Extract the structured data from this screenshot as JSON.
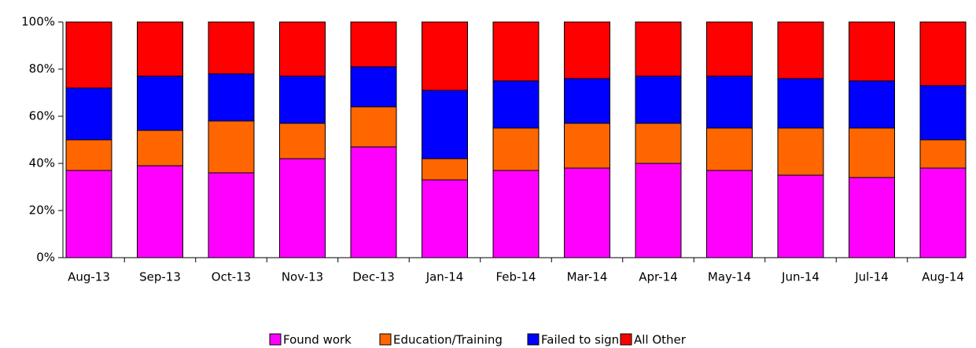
{
  "chart_data": {
    "type": "stacked_bar",
    "categories": [
      "Aug-13",
      "Sep-13",
      "Oct-13",
      "Nov-13",
      "Dec-13",
      "Jan-14",
      "Feb-14",
      "Mar-14",
      "Apr-14",
      "May-14",
      "Jun-14",
      "Jul-14",
      "Aug-14"
    ],
    "series": [
      {
        "name": "Found work",
        "color": "#ff00ff",
        "values": [
          37,
          39,
          36,
          42,
          47,
          33,
          37,
          38,
          40,
          37,
          35,
          34,
          38
        ]
      },
      {
        "name": "Education/Training",
        "color": "#ff6600",
        "values": [
          13,
          15,
          22,
          15,
          17,
          9,
          18,
          19,
          17,
          18,
          20,
          21,
          12
        ]
      },
      {
        "name": "Failed to sign",
        "color": "#0000ff",
        "values": [
          22,
          23,
          20,
          20,
          17,
          29,
          20,
          19,
          20,
          22,
          21,
          20,
          23
        ]
      },
      {
        "name": "All Other",
        "color": "#ff0000",
        "values": [
          28,
          23,
          22,
          23,
          19,
          29,
          25,
          24,
          23,
          23,
          24,
          25,
          27
        ]
      }
    ],
    "ylim": [
      0,
      100
    ],
    "yticks": [
      {
        "value": 0,
        "label": "0%"
      },
      {
        "value": 20,
        "label": "20%"
      },
      {
        "value": 40,
        "label": "40%"
      },
      {
        "value": 60,
        "label": "60%"
      },
      {
        "value": 80,
        "label": "80%"
      },
      {
        "value": 100,
        "label": "100%"
      }
    ],
    "grid": false,
    "legend": "bottom"
  }
}
